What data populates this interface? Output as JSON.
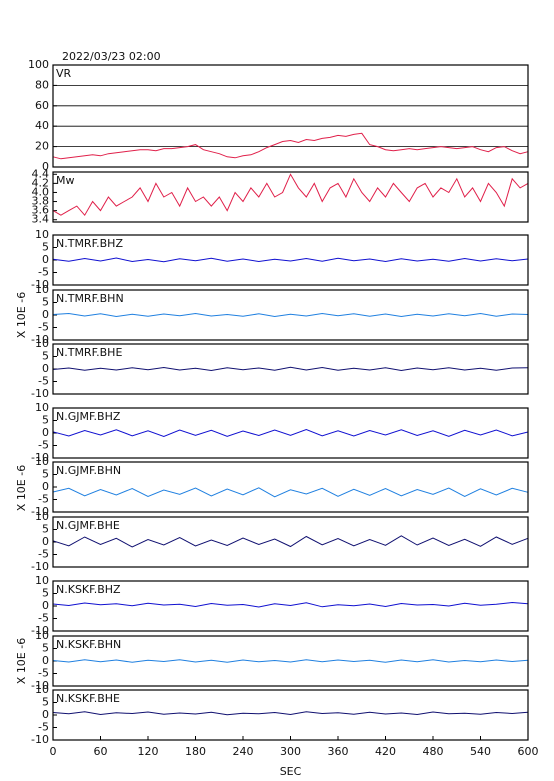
{
  "chart_data": [
    {
      "type": "line",
      "title": "2022/03/23 02:00",
      "label": "VR",
      "color": "#e0204a",
      "grid": true,
      "x": [
        0,
        10,
        20,
        30,
        40,
        50,
        60,
        70,
        80,
        90,
        100,
        110,
        120,
        130,
        140,
        150,
        160,
        170,
        180,
        190,
        200,
        210,
        220,
        230,
        240,
        250,
        260,
        270,
        280,
        290,
        300,
        310,
        320,
        330,
        340,
        350,
        360,
        370,
        380,
        390,
        400,
        410,
        420,
        430,
        440,
        450,
        460,
        470,
        480,
        490,
        500,
        510,
        520,
        530,
        540,
        550,
        560,
        570,
        580,
        590,
        600
      ],
      "values": [
        10,
        8,
        9,
        10,
        11,
        12,
        11,
        13,
        14,
        15,
        16,
        17,
        17,
        16,
        18,
        18,
        19,
        20,
        22,
        17,
        15,
        13,
        10,
        9,
        11,
        12,
        15,
        19,
        22,
        25,
        26,
        24,
        27,
        26,
        28,
        29,
        31,
        30,
        32,
        33,
        22,
        20,
        17,
        16,
        17,
        18,
        17,
        18,
        19,
        20,
        19,
        18,
        19,
        20,
        17,
        15,
        19,
        20,
        16,
        13,
        15
      ],
      "xlim": [
        0,
        600
      ],
      "ylim": [
        0,
        100
      ],
      "yticks": [
        0,
        20,
        40,
        60,
        80,
        100
      ]
    },
    {
      "type": "line",
      "label": "Mw",
      "color": "#e0204a",
      "x": [
        0,
        10,
        20,
        30,
        40,
        50,
        60,
        70,
        80,
        90,
        100,
        110,
        120,
        130,
        140,
        150,
        160,
        170,
        180,
        190,
        200,
        210,
        220,
        230,
        240,
        250,
        260,
        270,
        280,
        290,
        300,
        310,
        320,
        330,
        340,
        350,
        360,
        370,
        380,
        390,
        400,
        410,
        420,
        430,
        440,
        450,
        460,
        470,
        480,
        490,
        500,
        510,
        520,
        530,
        540,
        550,
        560,
        570,
        580,
        590,
        600
      ],
      "values": [
        3.6,
        3.5,
        3.6,
        3.7,
        3.5,
        3.8,
        3.6,
        3.9,
        3.7,
        3.8,
        3.9,
        4.1,
        3.8,
        4.2,
        3.9,
        4.0,
        3.7,
        4.1,
        3.8,
        3.9,
        3.7,
        3.9,
        3.6,
        4.0,
        3.8,
        4.1,
        3.9,
        4.2,
        3.9,
        4.0,
        4.4,
        4.1,
        3.9,
        4.2,
        3.8,
        4.1,
        4.2,
        3.9,
        4.3,
        4.0,
        3.8,
        4.1,
        3.9,
        4.2,
        4.0,
        3.8,
        4.1,
        4.2,
        3.9,
        4.1,
        4.0,
        4.3,
        3.9,
        4.1,
        3.8,
        4.2,
        4.0,
        3.7,
        4.3,
        4.1,
        4.2
      ],
      "xlim": [
        0,
        600
      ],
      "ylim": [
        3.35,
        4.45
      ],
      "yticks": [
        3.4,
        3.6,
        3.8,
        {
          "value": 4,
          "label": "4.0"
        },
        4.2,
        4.4
      ]
    },
    {
      "type": "line",
      "label": "N.TMRF.BHZ",
      "ylabel": "X 10E -6",
      "color": "#1010d0",
      "x": [
        0,
        20,
        40,
        60,
        80,
        100,
        120,
        140,
        160,
        180,
        200,
        220,
        240,
        260,
        280,
        300,
        320,
        340,
        360,
        380,
        400,
        420,
        440,
        460,
        480,
        500,
        520,
        540,
        560,
        580,
        600
      ],
      "values": [
        0.3,
        -0.5,
        0.6,
        -0.4,
        0.8,
        -0.6,
        0.2,
        -0.7,
        0.5,
        -0.3,
        0.7,
        -0.5,
        0.4,
        -0.6,
        0.3,
        -0.4,
        0.6,
        -0.5,
        0.7,
        -0.3,
        0.4,
        -0.6,
        0.5,
        -0.4,
        0.3,
        -0.5,
        0.6,
        -0.4,
        0.5,
        -0.3,
        0.4
      ],
      "xlim": [
        0,
        600
      ],
      "ylim": [
        -10,
        10
      ],
      "yticks": [
        -10,
        -5,
        0,
        5,
        10
      ]
    },
    {
      "type": "line",
      "label": "N.TMRF.BHN",
      "color": "#2080e0",
      "x": [
        0,
        20,
        40,
        60,
        80,
        100,
        120,
        140,
        160,
        180,
        200,
        220,
        240,
        260,
        280,
        300,
        320,
        340,
        360,
        380,
        400,
        420,
        440,
        460,
        480,
        500,
        520,
        540,
        560,
        580,
        600
      ],
      "values": [
        0.2,
        0.6,
        -0.4,
        0.5,
        -0.6,
        0.3,
        -0.5,
        0.4,
        -0.3,
        0.6,
        -0.4,
        0.2,
        -0.5,
        0.5,
        -0.6,
        0.3,
        -0.4,
        0.6,
        -0.3,
        0.5,
        -0.5,
        0.4,
        -0.6,
        0.3,
        -0.4,
        0.5,
        -0.3,
        0.6,
        -0.5,
        0.4,
        0.2
      ],
      "xlim": [
        0,
        600
      ],
      "ylim": [
        -10,
        10
      ],
      "yticks": [
        -10,
        -5,
        0,
        5,
        10
      ]
    },
    {
      "type": "line",
      "label": "N.TMRF.BHE",
      "color": "#101070",
      "x": [
        0,
        20,
        40,
        60,
        80,
        100,
        120,
        140,
        160,
        180,
        200,
        220,
        240,
        260,
        280,
        300,
        320,
        340,
        360,
        380,
        400,
        420,
        440,
        460,
        480,
        500,
        520,
        540,
        560,
        580,
        600
      ],
      "values": [
        -0.2,
        0.4,
        -0.5,
        0.3,
        -0.4,
        0.5,
        -0.3,
        0.6,
        -0.4,
        0.3,
        -0.6,
        0.5,
        -0.3,
        0.4,
        -0.5,
        0.7,
        -0.4,
        0.6,
        -0.5,
        0.3,
        -0.4,
        0.5,
        -0.6,
        0.4,
        -0.3,
        0.5,
        -0.4,
        0.3,
        -0.5,
        0.4,
        0.5
      ],
      "xlim": [
        0,
        600
      ],
      "ylim": [
        -10,
        10
      ],
      "yticks": [
        -10,
        -5,
        0,
        5,
        10
      ]
    },
    {
      "type": "line",
      "label": "N.GJMF.BHZ",
      "ylabel": "X 10E -6",
      "color": "#1010d0",
      "x": [
        0,
        20,
        40,
        60,
        80,
        100,
        120,
        140,
        160,
        180,
        200,
        220,
        240,
        260,
        280,
        300,
        320,
        340,
        360,
        380,
        400,
        420,
        440,
        460,
        480,
        500,
        520,
        540,
        560,
        580,
        600
      ],
      "values": [
        0.5,
        -1.2,
        1.0,
        -0.8,
        1.3,
        -1.1,
        0.9,
        -1.4,
        1.2,
        -0.9,
        1.1,
        -1.3,
        0.8,
        -1.0,
        1.2,
        -0.9,
        1.4,
        -1.1,
        0.9,
        -1.2,
        1.0,
        -0.8,
        1.3,
        -1.0,
        0.9,
        -1.3,
        1.1,
        -0.8,
        1.2,
        -1.1,
        0.4
      ],
      "xlim": [
        0,
        600
      ],
      "ylim": [
        -10,
        10
      ],
      "yticks": [
        -10,
        -5,
        0,
        5,
        10
      ]
    },
    {
      "type": "line",
      "label": "N.GJMF.BHN",
      "color": "#2080e0",
      "x": [
        0,
        20,
        40,
        60,
        80,
        100,
        120,
        140,
        160,
        180,
        200,
        220,
        240,
        260,
        280,
        300,
        320,
        340,
        360,
        380,
        400,
        420,
        440,
        460,
        480,
        500,
        520,
        540,
        560,
        580,
        600
      ],
      "values": [
        -2,
        -0.5,
        -3.5,
        -1,
        -3.2,
        -0.6,
        -3.8,
        -1.2,
        -2.9,
        -0.4,
        -3.6,
        -0.8,
        -3.1,
        -0.3,
        -3.9,
        -1.1,
        -2.8,
        -0.5,
        -3.7,
        -0.9,
        -3.3,
        -0.6,
        -3.5,
        -1.0,
        -2.9,
        -0.4,
        -3.8,
        -0.7,
        -3.2,
        -0.5,
        -2.1
      ],
      "xlim": [
        0,
        600
      ],
      "ylim": [
        -10,
        10
      ],
      "yticks": [
        -10,
        -5,
        0,
        5,
        10
      ]
    },
    {
      "type": "line",
      "label": "N.GJMF.BHE",
      "color": "#101070",
      "x": [
        0,
        20,
        40,
        60,
        80,
        100,
        120,
        140,
        160,
        180,
        200,
        220,
        240,
        260,
        280,
        300,
        320,
        340,
        360,
        380,
        400,
        420,
        440,
        460,
        480,
        500,
        520,
        540,
        560,
        580,
        600
      ],
      "values": [
        0.5,
        -1.5,
        2.0,
        -1.0,
        1.5,
        -2.0,
        1.0,
        -1.2,
        1.8,
        -1.6,
        0.8,
        -1.4,
        1.6,
        -1.0,
        1.2,
        -1.8,
        2.2,
        -1.1,
        1.4,
        -1.5,
        1.0,
        -1.3,
        2.5,
        -1.2,
        1.6,
        -1.4,
        1.1,
        -1.7,
        2.0,
        -0.9,
        1.5
      ],
      "xlim": [
        0,
        600
      ],
      "ylim": [
        -10,
        10
      ],
      "yticks": [
        -10,
        -5,
        0,
        5,
        10
      ]
    },
    {
      "type": "line",
      "label": "N.KSKF.BHZ",
      "ylabel": "X 10E -6",
      "color": "#1010d0",
      "x": [
        0,
        20,
        40,
        60,
        80,
        100,
        120,
        140,
        160,
        180,
        200,
        220,
        240,
        260,
        280,
        300,
        320,
        340,
        360,
        380,
        400,
        420,
        440,
        460,
        480,
        500,
        520,
        540,
        560,
        580,
        600
      ],
      "values": [
        0.8,
        0.2,
        1.2,
        0.5,
        0.9,
        0.1,
        1.1,
        0.4,
        0.7,
        -0.2,
        1.0,
        0.3,
        0.6,
        -0.4,
        0.9,
        0.2,
        1.3,
        -0.3,
        0.5,
        0.1,
        0.8,
        -0.2,
        1.0,
        0.4,
        0.6,
        0.0,
        1.1,
        0.3,
        0.7,
        1.4,
        0.9
      ],
      "xlim": [
        0,
        600
      ],
      "ylim": [
        -10,
        10
      ],
      "yticks": [
        -10,
        -5,
        0,
        5,
        10
      ]
    },
    {
      "type": "line",
      "label": "N.KSKF.BHN",
      "color": "#2080e0",
      "x": [
        0,
        20,
        40,
        60,
        80,
        100,
        120,
        140,
        160,
        180,
        200,
        220,
        240,
        260,
        280,
        300,
        320,
        340,
        360,
        380,
        400,
        420,
        440,
        460,
        480,
        500,
        520,
        540,
        560,
        580,
        600
      ],
      "values": [
        0.2,
        -0.4,
        0.5,
        -0.3,
        0.4,
        -0.5,
        0.3,
        -0.2,
        0.5,
        -0.4,
        0.3,
        -0.5,
        0.4,
        -0.3,
        0.2,
        -0.4,
        0.5,
        -0.3,
        0.4,
        -0.2,
        0.3,
        -0.5,
        0.4,
        -0.3,
        0.5,
        -0.4,
        0.2,
        -0.3,
        0.4,
        -0.2,
        0.3
      ],
      "xlim": [
        0,
        600
      ],
      "ylim": [
        -10,
        10
      ],
      "yticks": [
        -10,
        -5,
        0,
        5,
        10
      ]
    },
    {
      "type": "line",
      "label": "N.KSKF.BHE",
      "xlabel": "SEC",
      "color": "#101070",
      "x": [
        0,
        20,
        40,
        60,
        80,
        100,
        120,
        140,
        160,
        180,
        200,
        220,
        240,
        260,
        280,
        300,
        320,
        340,
        360,
        380,
        400,
        420,
        440,
        460,
        480,
        500,
        520,
        540,
        560,
        580,
        600
      ],
      "values": [
        1.0,
        0.5,
        1.3,
        0.2,
        0.9,
        0.6,
        1.2,
        0.3,
        0.8,
        0.4,
        1.1,
        0.1,
        0.7,
        0.5,
        1.0,
        0.2,
        1.3,
        0.6,
        0.9,
        0.3,
        1.1,
        0.4,
        0.8,
        0.2,
        1.2,
        0.5,
        0.7,
        0.3,
        1.0,
        0.6,
        1.1
      ],
      "xlim": [
        0,
        600
      ],
      "ylim": [
        -10,
        10
      ],
      "yticks": [
        -10,
        -5,
        0,
        5,
        10
      ],
      "xticks": [
        0,
        60,
        120,
        180,
        240,
        300,
        360,
        420,
        480,
        540,
        600
      ]
    }
  ]
}
